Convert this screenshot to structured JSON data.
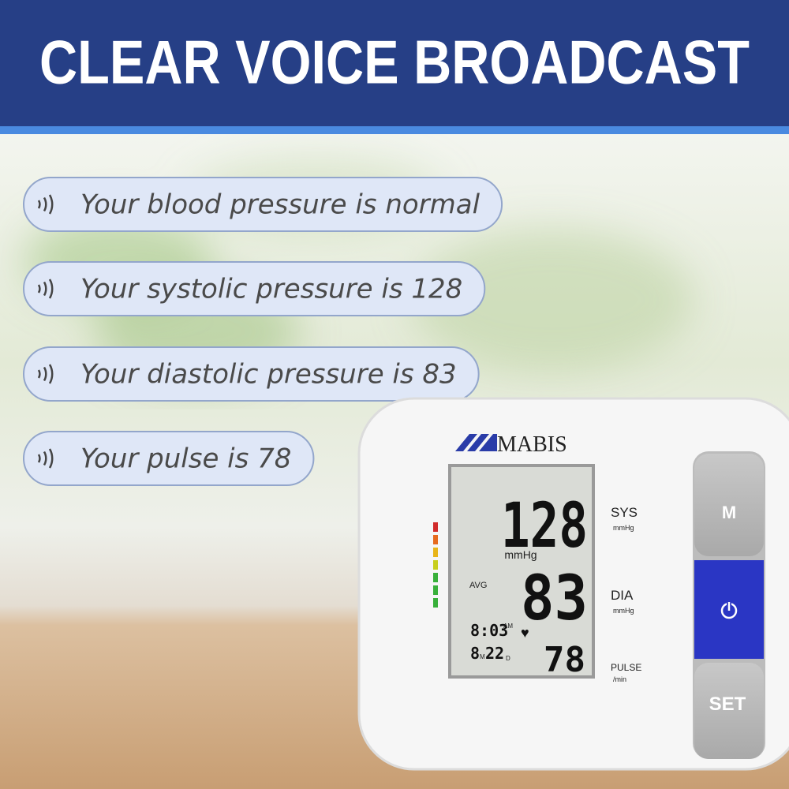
{
  "header": {
    "title": "CLEAR VOICE BROADCAST"
  },
  "messages": [
    "Your blood pressure is normal",
    "Your systolic pressure is 128",
    "Your diastolic pressure is 83",
    "Your pulse is 78"
  ],
  "device": {
    "brand": "MABIS",
    "display": {
      "systolic": "128",
      "unit": "mmHg",
      "avg": "AVG",
      "diastolic": "83",
      "time": "8:03",
      "time_suffix": "AM",
      "date_month": "8",
      "month_suffix": "M",
      "date_day": "22",
      "day_suffix": "D",
      "pulse": "78"
    },
    "labels": [
      {
        "name": "SYS",
        "unit": "mmHg"
      },
      {
        "name": "DIA",
        "unit": "mmHg"
      },
      {
        "name": "PULSE",
        "unit": "/min"
      }
    ],
    "buttons": {
      "memory": "M",
      "set": "SET"
    }
  }
}
